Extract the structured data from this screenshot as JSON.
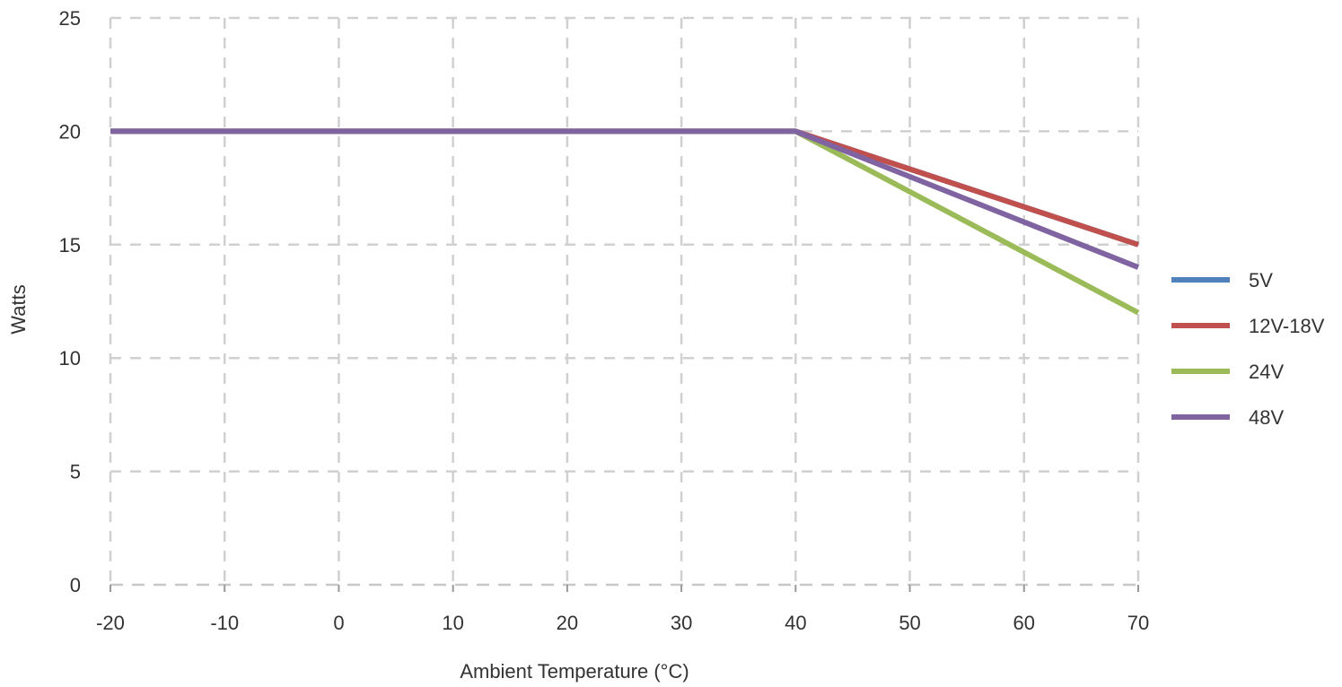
{
  "chart_data": {
    "type": "line",
    "xlabel": "Ambient Temperature (°C)",
    "ylabel": "Watts",
    "xlim": [
      -20,
      70
    ],
    "ylim": [
      0,
      25
    ],
    "x_ticks": [
      -20,
      -10,
      0,
      10,
      20,
      30,
      40,
      50,
      60,
      70
    ],
    "y_ticks": [
      0,
      5,
      10,
      15,
      20,
      25
    ],
    "grid": true,
    "legend_position": "right",
    "series": [
      {
        "name": "5V",
        "color": "#4f81bd",
        "x": [
          -20,
          40,
          70
        ],
        "y": [
          20,
          20,
          15
        ]
      },
      {
        "name": "12V-18V",
        "color": "#c0504d",
        "x": [
          -20,
          40,
          70
        ],
        "y": [
          20,
          20,
          15
        ]
      },
      {
        "name": "24V",
        "color": "#9bbb59",
        "x": [
          -20,
          40,
          70
        ],
        "y": [
          20,
          20,
          12
        ]
      },
      {
        "name": "48V",
        "color": "#8064a2",
        "x": [
          -20,
          40,
          70
        ],
        "y": [
          20,
          20,
          14
        ]
      }
    ]
  }
}
